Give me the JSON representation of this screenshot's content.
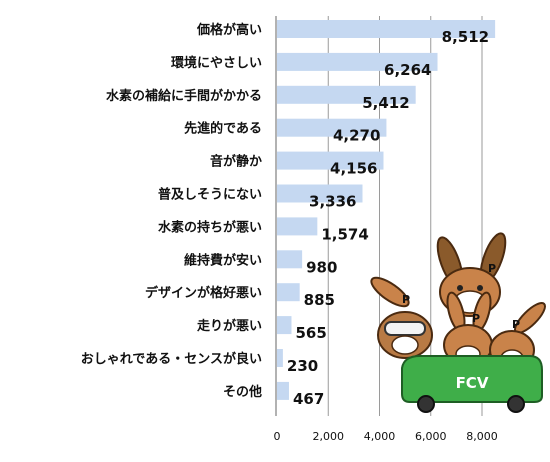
{
  "chart_data": {
    "type": "bar",
    "orientation": "horizontal",
    "categories": [
      "価格が高い",
      "環境にやさしい",
      "水素の補給に手間がかかる",
      "先進的である",
      "音が静か",
      "普及しそうにない",
      "水素の持ちが悪い",
      "維持費が安い",
      "デザインが格好悪い",
      "走りが悪い",
      "おしゃれである・センスが良い",
      "その他"
    ],
    "values": [
      8512,
      6264,
      5412,
      4270,
      4156,
      3336,
      1574,
      980,
      885,
      565,
      230,
      467
    ],
    "value_labels": [
      "8,512",
      "6,264",
      "5,412",
      "4,270",
      "4,156",
      "3,336",
      "1,574",
      "980",
      "885",
      "565",
      "230",
      "467"
    ],
    "xlim": [
      0,
      8500
    ],
    "xticks": [
      0,
      2000,
      4000,
      6000,
      8000
    ],
    "xtick_labels": [
      "0",
      "2,000",
      "4,000",
      "6,000",
      "8,000"
    ],
    "grid": true,
    "bar_color": "#c5d8f1"
  },
  "illustration": {
    "car_text": "FCV",
    "car_color": "#3fae49",
    "mascot_letters": [
      "P",
      "P",
      "P",
      "P"
    ]
  }
}
